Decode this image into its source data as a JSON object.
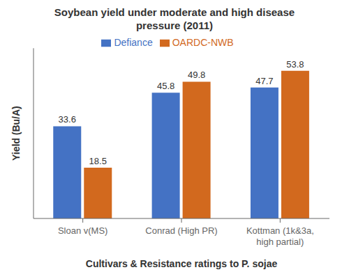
{
  "chart_data": {
    "type": "bar",
    "title": "Soybean yield under moderate and high disease\npressure (2011)",
    "x_label": "Cultivars & Resistance ratings to P. sojae",
    "y_label": "Yield (Bu/A)",
    "categories": [
      "Sloan v(MS)",
      "Conrad (High PR)",
      "Kottman (1k&3a,\nhigh partial)"
    ],
    "series": [
      {
        "name": "Defiance",
        "color": "#4472C4",
        "values": [
          33.6,
          45.8,
          47.7
        ]
      },
      {
        "name": "OARDC-NWB",
        "color": "#D2691E",
        "values": [
          18.5,
          49.8,
          53.8
        ]
      }
    ],
    "ylim": [
      0,
      62
    ],
    "yticks": [],
    "tick_labels": "x",
    "data_labels": true,
    "legend": "top",
    "grid": false
  }
}
